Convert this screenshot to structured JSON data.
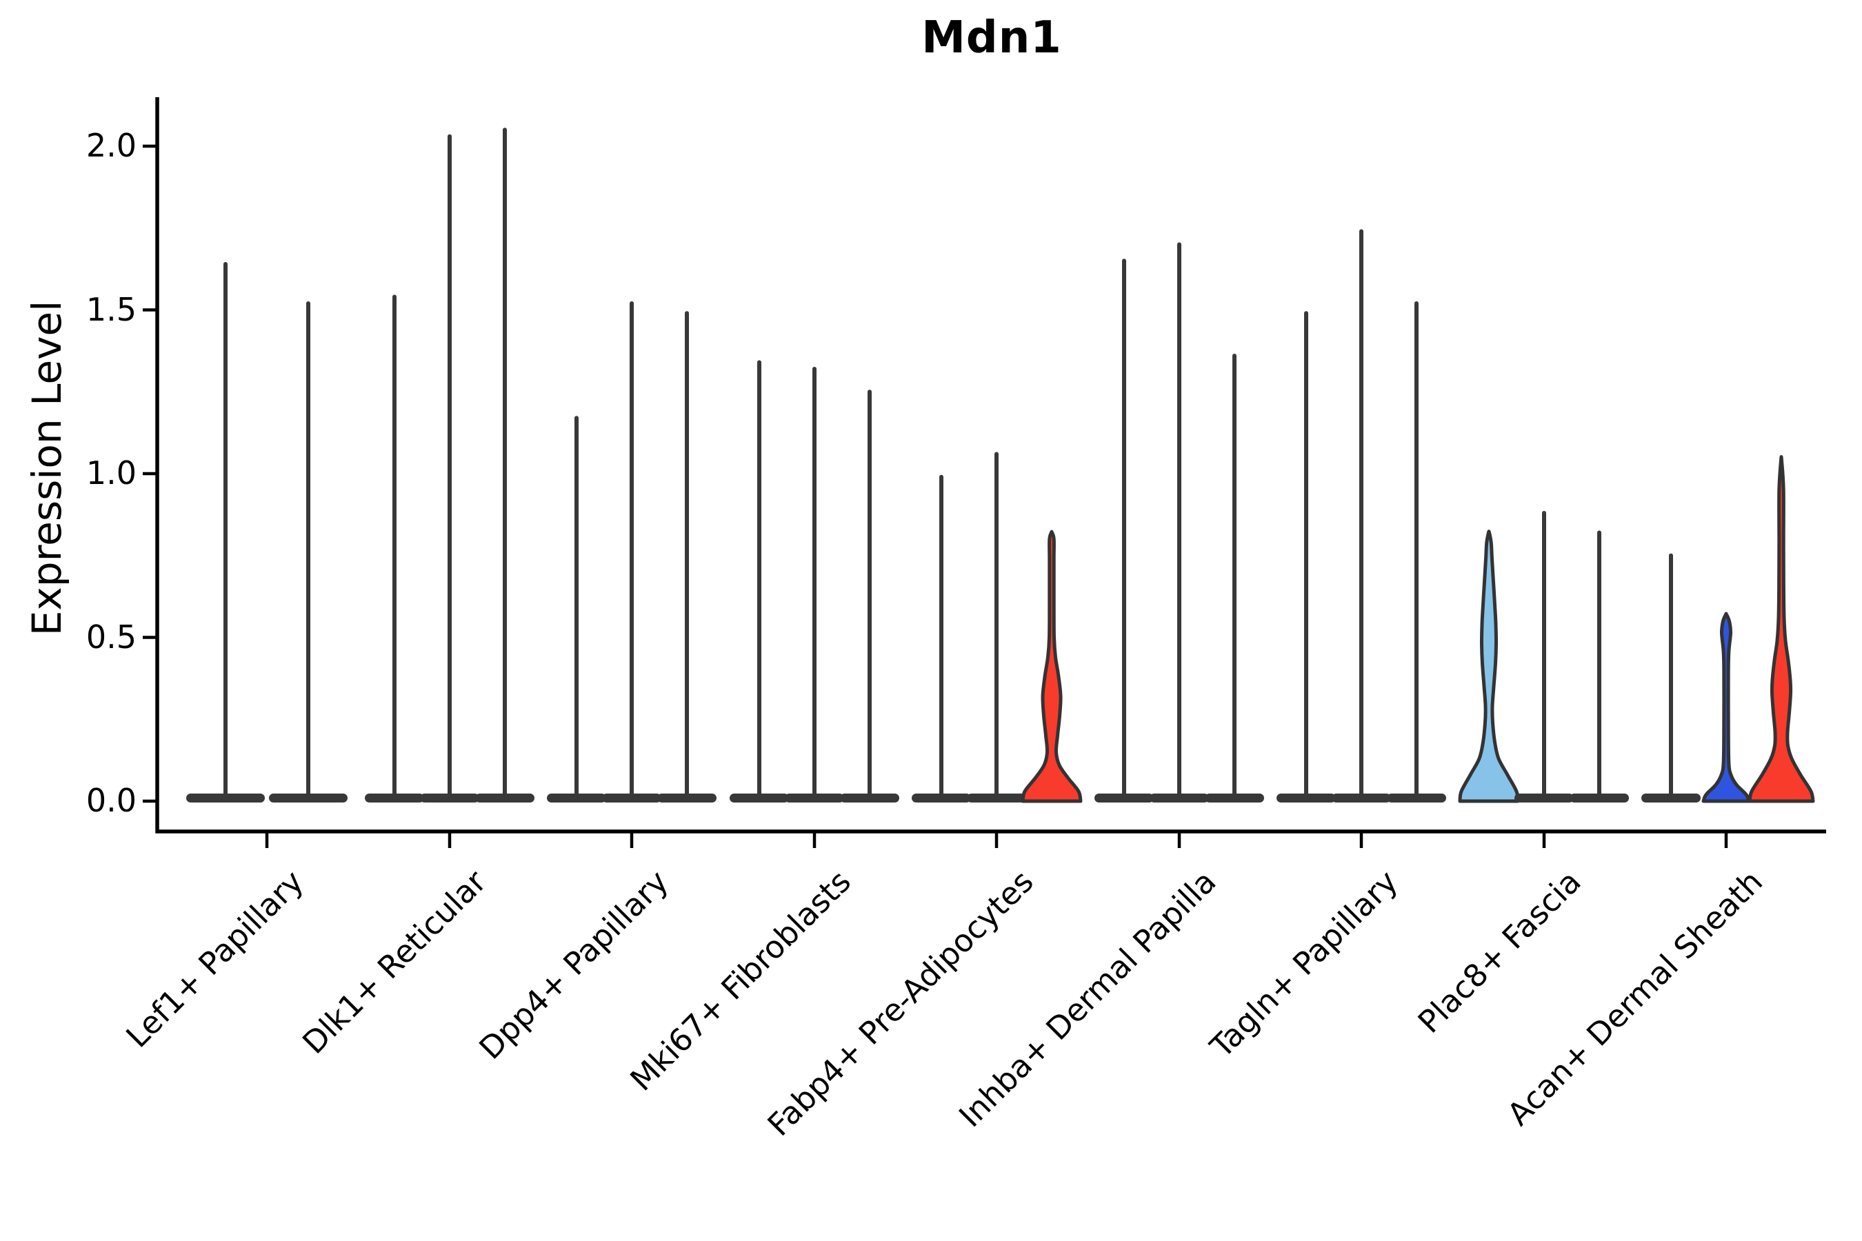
{
  "header": {
    "title": "Mdn1"
  },
  "axes": {
    "y_label": "Expression Level",
    "ytick_labels": [
      "0.0",
      "0.5",
      "1.0",
      "1.5",
      "2.0"
    ]
  },
  "chart_data": {
    "type": "violin",
    "title": "Mdn1",
    "xlabel": "",
    "ylabel": "Expression Level",
    "ylim": [
      0,
      2.15
    ],
    "yticks": [
      0.0,
      0.5,
      1.0,
      1.5,
      2.0
    ],
    "ytick_labels": [
      "0.0",
      "0.5",
      "1.0",
      "1.5",
      "2.0"
    ],
    "grid": false,
    "legend": "none",
    "categories": [
      "Lef1+ Papillary",
      "Dlk1+ Reticular",
      "Dpp4+ Papillary",
      "Mki67+ Fibroblasts",
      "Fabp4+ Pre-Adipocytes",
      "Inhba+ Dermal Papilla",
      "Tagln+ Papillary",
      "Plac8+ Fascia",
      "Acan+ Dermal Sheath"
    ],
    "description": "Violin plot of Mdn1 expression; most violins collapse to a flat base at 0 with a thin spike to the max expression value. Four violins have visible density bodies and are color-filled.",
    "groups": [
      {
        "category": "Lef1+ Papillary",
        "violins": [
          {
            "kind": "needle",
            "color_key": "needle",
            "max": 1.64
          },
          {
            "kind": "needle",
            "color_key": "needle",
            "max": 1.52
          }
        ]
      },
      {
        "category": "Dlk1+ Reticular",
        "violins": [
          {
            "kind": "needle",
            "color_key": "needle",
            "max": 1.54
          },
          {
            "kind": "needle",
            "color_key": "needle",
            "max": 2.03
          },
          {
            "kind": "needle",
            "color_key": "needle",
            "max": 2.05
          }
        ]
      },
      {
        "category": "Dpp4+ Papillary",
        "violins": [
          {
            "kind": "needle",
            "color_key": "needle",
            "max": 1.17
          },
          {
            "kind": "needle",
            "color_key": "needle",
            "max": 1.52
          },
          {
            "kind": "needle",
            "color_key": "needle",
            "max": 1.49
          }
        ]
      },
      {
        "category": "Mki67+ Fibroblasts",
        "violins": [
          {
            "kind": "needle",
            "color_key": "needle",
            "max": 1.34
          },
          {
            "kind": "needle",
            "color_key": "needle",
            "max": 1.32
          },
          {
            "kind": "needle",
            "color_key": "needle",
            "max": 1.25
          }
        ]
      },
      {
        "category": "Fabp4+ Pre-Adipocytes",
        "violins": [
          {
            "kind": "needle",
            "color_key": "needle",
            "max": 0.99
          },
          {
            "kind": "needle",
            "color_key": "needle",
            "max": 1.06
          },
          {
            "kind": "violin",
            "color_key": "red",
            "max": 0.82,
            "bulge_peak": 0.32,
            "profile": [
              [
                0,
                42
              ],
              [
                0.03,
                39
              ],
              [
                0.07,
                24
              ],
              [
                0.11,
                11
              ],
              [
                0.15,
                6.5
              ],
              [
                0.2,
                8.5
              ],
              [
                0.26,
                11.5
              ],
              [
                0.32,
                13
              ],
              [
                0.38,
                10
              ],
              [
                0.44,
                5.5
              ],
              [
                0.5,
                3.5
              ],
              [
                0.62,
                3.2
              ],
              [
                0.74,
                3.2
              ],
              [
                0.8,
                3.2
              ],
              [
                0.82,
                0.5
              ]
            ]
          }
        ]
      },
      {
        "category": "Inhba+ Dermal Papilla",
        "violins": [
          {
            "kind": "needle",
            "color_key": "needle",
            "max": 1.65
          },
          {
            "kind": "needle",
            "color_key": "needle",
            "max": 1.7
          },
          {
            "kind": "needle",
            "color_key": "needle",
            "max": 1.36
          }
        ]
      },
      {
        "category": "Tagln+ Papillary",
        "violins": [
          {
            "kind": "needle",
            "color_key": "needle",
            "max": 1.49
          },
          {
            "kind": "needle",
            "color_key": "needle",
            "max": 1.74
          },
          {
            "kind": "needle",
            "color_key": "needle",
            "max": 1.52
          }
        ]
      },
      {
        "category": "Plac8+ Fascia",
        "violins": [
          {
            "kind": "violin",
            "color_key": "light_blue",
            "max": 0.82,
            "bulge_peak": 0.48,
            "profile": [
              [
                0,
                42
              ],
              [
                0.03,
                40
              ],
              [
                0.08,
                27
              ],
              [
                0.13,
                14
              ],
              [
                0.18,
                8.5
              ],
              [
                0.24,
                5.5
              ],
              [
                0.29,
                5
              ],
              [
                0.35,
                7
              ],
              [
                0.42,
                9.5
              ],
              [
                0.48,
                10.5
              ],
              [
                0.54,
                10
              ],
              [
                0.6,
                8.5
              ],
              [
                0.67,
                6.5
              ],
              [
                0.74,
                4.5
              ],
              [
                0.79,
                3.2
              ],
              [
                0.82,
                0.5
              ]
            ]
          },
          {
            "kind": "needle",
            "color_key": "needle",
            "max": 0.88
          },
          {
            "kind": "needle",
            "color_key": "needle",
            "max": 0.82
          }
        ]
      },
      {
        "category": "Acan+ Dermal Sheath",
        "violins": [
          {
            "kind": "needle",
            "color_key": "needle",
            "max": 0.75
          },
          {
            "kind": "violin",
            "color_key": "dark_blue",
            "max": 0.57,
            "bulge_peak": 0.52,
            "profile": [
              [
                0,
                33
              ],
              [
                0.02,
                29
              ],
              [
                0.05,
                15
              ],
              [
                0.08,
                7
              ],
              [
                0.12,
                3.8
              ],
              [
                0.25,
                3.2
              ],
              [
                0.4,
                3.2
              ],
              [
                0.46,
                4
              ],
              [
                0.5,
                6
              ],
              [
                0.52,
                6.5
              ],
              [
                0.55,
                4.5
              ],
              [
                0.57,
                0.5
              ]
            ]
          },
          {
            "kind": "violin",
            "color_key": "red",
            "max": 1.04,
            "bulge_peak": 0.35,
            "profile": [
              [
                0,
                46
              ],
              [
                0.03,
                43
              ],
              [
                0.08,
                28
              ],
              [
                0.13,
                15
              ],
              [
                0.17,
                9.5
              ],
              [
                0.21,
                9
              ],
              [
                0.27,
                11.5
              ],
              [
                0.33,
                13.5
              ],
              [
                0.37,
                13
              ],
              [
                0.43,
                10
              ],
              [
                0.49,
                6
              ],
              [
                0.56,
                4
              ],
              [
                0.66,
                3.4
              ],
              [
                0.8,
                3.2
              ],
              [
                0.95,
                3.2
              ],
              [
                1.04,
                0.5
              ]
            ]
          }
        ]
      }
    ],
    "colors": {
      "needle": "#383838",
      "outline": "#333333",
      "red": "#f93b2b",
      "light_blue": "#87c3e8",
      "dark_blue": "#2f55e0",
      "axis": "#000000"
    }
  }
}
